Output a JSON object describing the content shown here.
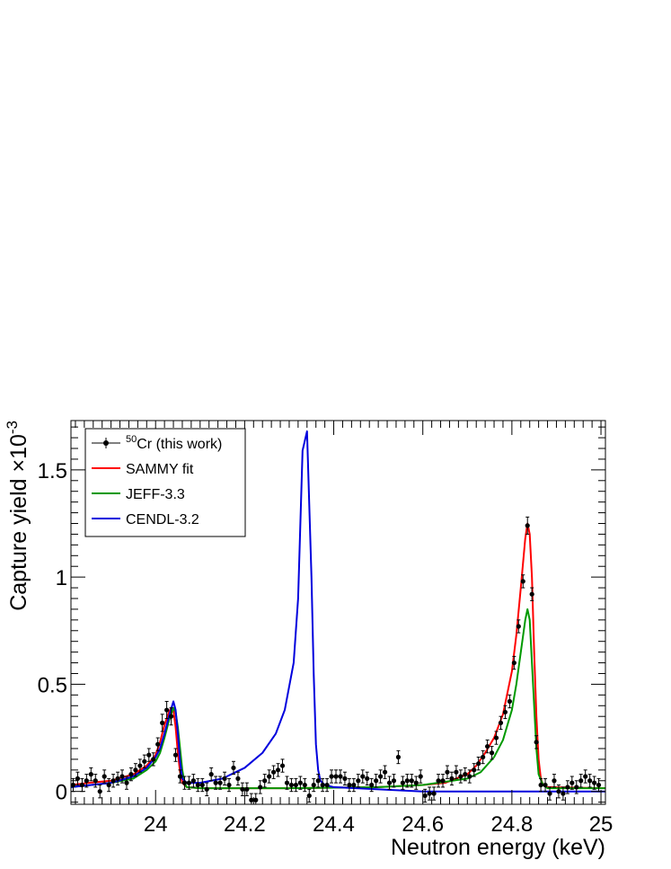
{
  "chart_data": {
    "type": "line",
    "xlabel": "Neutron energy (keV)",
    "ylabel": "Capture yield ×10",
    "ylabel_exponent": "-3",
    "xlim": [
      23.81,
      25.01
    ],
    "ylim": [
      -0.06,
      1.73
    ],
    "x_ticks": [
      24,
      24.2,
      24.4,
      24.6,
      24.8,
      25
    ],
    "x_tick_labels": [
      "24",
      "24.2",
      "24.4",
      "24.6",
      "24.8",
      "25"
    ],
    "y_ticks": [
      0,
      0.5,
      1,
      1.5
    ],
    "y_tick_labels": [
      "0",
      "0.5",
      "1",
      "1.5"
    ],
    "legend_position": "top-left",
    "grid": false,
    "legend": [
      {
        "sup": "50",
        "label": "Cr (this work)",
        "color": "#000000",
        "kind": "marker"
      },
      {
        "label": "SAMMY fit",
        "color": "#ff0000",
        "kind": "line"
      },
      {
        "label": "JEFF-3.3",
        "color": "#009900",
        "kind": "line"
      },
      {
        "label": "CENDL-3.2",
        "color": "#0000dd",
        "kind": "line"
      }
    ],
    "data_points": {
      "name": "50Cr (this work)",
      "color": "#000000",
      "points": [
        [
          23.815,
          0.03,
          0.03
        ],
        [
          23.825,
          0.06,
          0.03
        ],
        [
          23.835,
          0.03,
          0.03
        ],
        [
          23.845,
          0.05,
          0.03
        ],
        [
          23.855,
          0.08,
          0.03
        ],
        [
          23.865,
          0.05,
          0.03
        ],
        [
          23.875,
          0.0,
          0.03
        ],
        [
          23.885,
          0.07,
          0.03
        ],
        [
          23.895,
          0.03,
          0.03
        ],
        [
          23.905,
          0.05,
          0.03
        ],
        [
          23.915,
          0.06,
          0.03
        ],
        [
          23.925,
          0.07,
          0.03
        ],
        [
          23.935,
          0.04,
          0.03
        ],
        [
          23.945,
          0.08,
          0.03
        ],
        [
          23.955,
          0.1,
          0.03
        ],
        [
          23.965,
          0.12,
          0.03
        ],
        [
          23.975,
          0.14,
          0.03
        ],
        [
          23.985,
          0.17,
          0.03
        ],
        [
          23.995,
          0.15,
          0.03
        ],
        [
          24.005,
          0.22,
          0.03
        ],
        [
          24.015,
          0.32,
          0.04
        ],
        [
          24.025,
          0.38,
          0.04
        ],
        [
          24.035,
          0.35,
          0.04
        ],
        [
          24.045,
          0.17,
          0.03
        ],
        [
          24.055,
          0.07,
          0.03
        ],
        [
          24.065,
          0.04,
          0.03
        ],
        [
          24.075,
          0.04,
          0.03
        ],
        [
          24.085,
          0.05,
          0.03
        ],
        [
          24.095,
          0.03,
          0.03
        ],
        [
          24.105,
          0.03,
          0.03
        ],
        [
          24.115,
          0.01,
          0.03
        ],
        [
          24.125,
          0.08,
          0.03
        ],
        [
          24.135,
          0.04,
          0.03
        ],
        [
          24.145,
          0.04,
          0.03
        ],
        [
          24.155,
          0.06,
          0.03
        ],
        [
          24.165,
          0.03,
          0.03
        ],
        [
          24.175,
          0.11,
          0.03
        ],
        [
          24.185,
          0.06,
          0.03
        ],
        [
          24.195,
          0.01,
          0.03
        ],
        [
          24.205,
          0.01,
          0.03
        ],
        [
          24.215,
          -0.04,
          0.03
        ],
        [
          24.225,
          -0.04,
          0.03
        ],
        [
          24.235,
          0.02,
          0.03
        ],
        [
          24.245,
          0.05,
          0.03
        ],
        [
          24.255,
          0.07,
          0.03
        ],
        [
          24.265,
          0.09,
          0.03
        ],
        [
          24.275,
          0.1,
          0.03
        ],
        [
          24.285,
          0.12,
          0.03
        ],
        [
          24.295,
          0.04,
          0.03
        ],
        [
          24.305,
          0.03,
          0.03
        ],
        [
          24.315,
          0.03,
          0.03
        ],
        [
          24.325,
          0.04,
          0.03
        ],
        [
          24.335,
          0.03,
          0.03
        ],
        [
          24.345,
          -0.02,
          0.03
        ],
        [
          24.355,
          0.03,
          0.03
        ],
        [
          24.365,
          0.05,
          0.03
        ],
        [
          24.375,
          0.03,
          0.03
        ],
        [
          24.385,
          0.03,
          0.03
        ],
        [
          24.395,
          0.07,
          0.03
        ],
        [
          24.405,
          0.07,
          0.03
        ],
        [
          24.415,
          0.07,
          0.03
        ],
        [
          24.425,
          0.06,
          0.03
        ],
        [
          24.435,
          0.03,
          0.03
        ],
        [
          24.445,
          0.03,
          0.03
        ],
        [
          24.455,
          0.05,
          0.03
        ],
        [
          24.465,
          0.07,
          0.03
        ],
        [
          24.475,
          0.06,
          0.03
        ],
        [
          24.485,
          0.03,
          0.03
        ],
        [
          24.495,
          0.05,
          0.03
        ],
        [
          24.505,
          0.07,
          0.03
        ],
        [
          24.515,
          0.09,
          0.03
        ],
        [
          24.525,
          0.04,
          0.03
        ],
        [
          24.535,
          0.05,
          0.03
        ],
        [
          24.545,
          0.16,
          0.03
        ],
        [
          24.555,
          0.04,
          0.03
        ],
        [
          24.565,
          0.05,
          0.03
        ],
        [
          24.575,
          0.05,
          0.03
        ],
        [
          24.585,
          0.04,
          0.03
        ],
        [
          24.595,
          0.07,
          0.03
        ],
        [
          24.605,
          -0.02,
          0.03
        ],
        [
          24.615,
          -0.01,
          0.03
        ],
        [
          24.625,
          -0.01,
          0.03
        ],
        [
          24.635,
          0.05,
          0.03
        ],
        [
          24.645,
          0.05,
          0.03
        ],
        [
          24.655,
          0.09,
          0.03
        ],
        [
          24.665,
          0.06,
          0.03
        ],
        [
          24.675,
          0.09,
          0.03
        ],
        [
          24.685,
          0.07,
          0.03
        ],
        [
          24.695,
          0.08,
          0.03
        ],
        [
          24.705,
          0.07,
          0.03
        ],
        [
          24.715,
          0.1,
          0.03
        ],
        [
          24.725,
          0.13,
          0.03
        ],
        [
          24.735,
          0.16,
          0.03
        ],
        [
          24.745,
          0.21,
          0.03
        ],
        [
          24.755,
          0.18,
          0.03
        ],
        [
          24.765,
          0.25,
          0.03
        ],
        [
          24.775,
          0.32,
          0.03
        ],
        [
          24.785,
          0.37,
          0.03
        ],
        [
          24.795,
          0.42,
          0.03
        ],
        [
          24.805,
          0.6,
          0.03
        ],
        [
          24.815,
          0.77,
          0.03
        ],
        [
          24.825,
          0.98,
          0.03
        ],
        [
          24.835,
          1.24,
          0.04
        ],
        [
          24.845,
          0.92,
          0.03
        ],
        [
          24.855,
          0.23,
          0.03
        ],
        [
          24.865,
          0.03,
          0.03
        ],
        [
          24.875,
          0.03,
          0.03
        ],
        [
          24.885,
          -0.01,
          0.03
        ],
        [
          24.895,
          0.05,
          0.03
        ],
        [
          24.905,
          0.0,
          0.03
        ],
        [
          24.915,
          -0.01,
          0.03
        ],
        [
          24.925,
          0.02,
          0.03
        ],
        [
          24.935,
          0.04,
          0.03
        ],
        [
          24.945,
          0.02,
          0.03
        ],
        [
          24.955,
          0.05,
          0.03
        ],
        [
          24.965,
          0.07,
          0.03
        ],
        [
          24.975,
          0.05,
          0.03
        ],
        [
          24.985,
          0.04,
          0.03
        ],
        [
          24.995,
          0.03,
          0.03
        ]
      ]
    },
    "series": [
      {
        "name": "SAMMY fit",
        "color": "#ff0000",
        "points": [
          [
            23.81,
            0.03
          ],
          [
            23.85,
            0.04
          ],
          [
            23.9,
            0.05
          ],
          [
            23.95,
            0.08
          ],
          [
            23.98,
            0.12
          ],
          [
            24.0,
            0.17
          ],
          [
            24.01,
            0.23
          ],
          [
            24.02,
            0.31
          ],
          [
            24.03,
            0.37
          ],
          [
            24.035,
            0.39
          ],
          [
            24.04,
            0.38
          ],
          [
            24.045,
            0.3
          ],
          [
            24.05,
            0.18
          ],
          [
            24.055,
            0.09
          ],
          [
            24.06,
            0.04
          ],
          [
            24.07,
            0.02
          ],
          [
            24.1,
            0.015
          ],
          [
            24.3,
            0.015
          ],
          [
            24.5,
            0.02
          ],
          [
            24.6,
            0.03
          ],
          [
            24.65,
            0.04
          ],
          [
            24.7,
            0.08
          ],
          [
            24.72,
            0.12
          ],
          [
            24.74,
            0.18
          ],
          [
            24.76,
            0.25
          ],
          [
            24.78,
            0.36
          ],
          [
            24.8,
            0.56
          ],
          [
            24.81,
            0.73
          ],
          [
            24.82,
            0.95
          ],
          [
            24.83,
            1.18
          ],
          [
            24.835,
            1.25
          ],
          [
            24.84,
            1.2
          ],
          [
            24.845,
            1.0
          ],
          [
            24.85,
            0.65
          ],
          [
            24.855,
            0.35
          ],
          [
            24.86,
            0.15
          ],
          [
            24.865,
            0.06
          ],
          [
            24.87,
            0.03
          ],
          [
            24.88,
            0.02
          ],
          [
            25.01,
            0.015
          ]
        ]
      },
      {
        "name": "JEFF-3.3",
        "color": "#009900",
        "points": [
          [
            23.81,
            0.02
          ],
          [
            23.9,
            0.04
          ],
          [
            23.95,
            0.06
          ],
          [
            23.98,
            0.1
          ],
          [
            24.0,
            0.14
          ],
          [
            24.01,
            0.18
          ],
          [
            24.02,
            0.25
          ],
          [
            24.03,
            0.33
          ],
          [
            24.04,
            0.39
          ],
          [
            24.045,
            0.37
          ],
          [
            24.05,
            0.3
          ],
          [
            24.055,
            0.2
          ],
          [
            24.06,
            0.1
          ],
          [
            24.065,
            0.04
          ],
          [
            24.07,
            0.02
          ],
          [
            24.1,
            0.015
          ],
          [
            24.3,
            0.015
          ],
          [
            24.5,
            0.02
          ],
          [
            24.6,
            0.03
          ],
          [
            24.7,
            0.06
          ],
          [
            24.73,
            0.09
          ],
          [
            24.76,
            0.16
          ],
          [
            24.78,
            0.24
          ],
          [
            24.8,
            0.38
          ],
          [
            24.81,
            0.5
          ],
          [
            24.82,
            0.65
          ],
          [
            24.83,
            0.8
          ],
          [
            24.835,
            0.85
          ],
          [
            24.84,
            0.8
          ],
          [
            24.845,
            0.6
          ],
          [
            24.85,
            0.4
          ],
          [
            24.855,
            0.2
          ],
          [
            24.86,
            0.08
          ],
          [
            24.87,
            0.03
          ],
          [
            24.88,
            0.015
          ],
          [
            25.01,
            0.015
          ]
        ]
      },
      {
        "name": "CENDL-3.2",
        "color": "#0000dd",
        "points": [
          [
            23.81,
            0.02
          ],
          [
            23.9,
            0.04
          ],
          [
            23.95,
            0.07
          ],
          [
            23.98,
            0.11
          ],
          [
            24.0,
            0.16
          ],
          [
            24.01,
            0.2
          ],
          [
            24.02,
            0.27
          ],
          [
            24.03,
            0.35
          ],
          [
            24.04,
            0.42
          ],
          [
            24.045,
            0.38
          ],
          [
            24.05,
            0.27
          ],
          [
            24.055,
            0.14
          ],
          [
            24.06,
            0.06
          ],
          [
            24.07,
            0.04
          ],
          [
            24.1,
            0.04
          ],
          [
            24.15,
            0.06
          ],
          [
            24.2,
            0.11
          ],
          [
            24.24,
            0.18
          ],
          [
            24.27,
            0.27
          ],
          [
            24.29,
            0.38
          ],
          [
            24.31,
            0.6
          ],
          [
            24.32,
            0.9
          ],
          [
            24.33,
            1.59
          ],
          [
            24.34,
            1.68
          ],
          [
            24.35,
            1.0
          ],
          [
            24.355,
            0.55
          ],
          [
            24.36,
            0.22
          ],
          [
            24.365,
            0.1
          ],
          [
            24.37,
            0.05
          ],
          [
            24.38,
            0.03
          ],
          [
            24.4,
            0.02
          ],
          [
            24.6,
            0.0
          ],
          [
            25.01,
            0.0
          ]
        ]
      }
    ]
  }
}
